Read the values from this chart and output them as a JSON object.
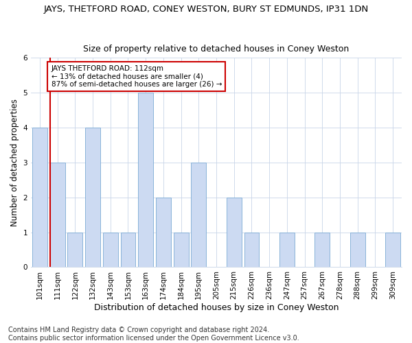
{
  "title": "JAYS, THETFORD ROAD, CONEY WESTON, BURY ST EDMUNDS, IP31 1DN",
  "subtitle": "Size of property relative to detached houses in Coney Weston",
  "xlabel": "Distribution of detached houses by size in Coney Weston",
  "ylabel": "Number of detached properties",
  "categories": [
    "101sqm",
    "111sqm",
    "122sqm",
    "132sqm",
    "143sqm",
    "153sqm",
    "163sqm",
    "174sqm",
    "184sqm",
    "195sqm",
    "205sqm",
    "215sqm",
    "226sqm",
    "236sqm",
    "247sqm",
    "257sqm",
    "267sqm",
    "278sqm",
    "288sqm",
    "299sqm",
    "309sqm"
  ],
  "values": [
    4,
    3,
    1,
    4,
    1,
    1,
    5,
    2,
    1,
    3,
    0,
    2,
    1,
    0,
    1,
    0,
    1,
    0,
    1,
    0,
    1
  ],
  "bar_color": "#ccdaf2",
  "bar_edgecolor": "#7aaad4",
  "highlight_index": 1,
  "highlight_linecolor": "#cc0000",
  "annotation_text": "JAYS THETFORD ROAD: 112sqm\n← 13% of detached houses are smaller (4)\n87% of semi-detached houses are larger (26) →",
  "annotation_box_edgecolor": "#cc0000",
  "ylim": [
    0,
    6
  ],
  "yticks": [
    0,
    1,
    2,
    3,
    4,
    5,
    6
  ],
  "footer_text": "Contains HM Land Registry data © Crown copyright and database right 2024.\nContains public sector information licensed under the Open Government Licence v3.0.",
  "title_fontsize": 9.5,
  "subtitle_fontsize": 9,
  "ylabel_fontsize": 8.5,
  "xlabel_fontsize": 9,
  "tick_fontsize": 7.5,
  "annotation_fontsize": 7.5,
  "footer_fontsize": 7
}
